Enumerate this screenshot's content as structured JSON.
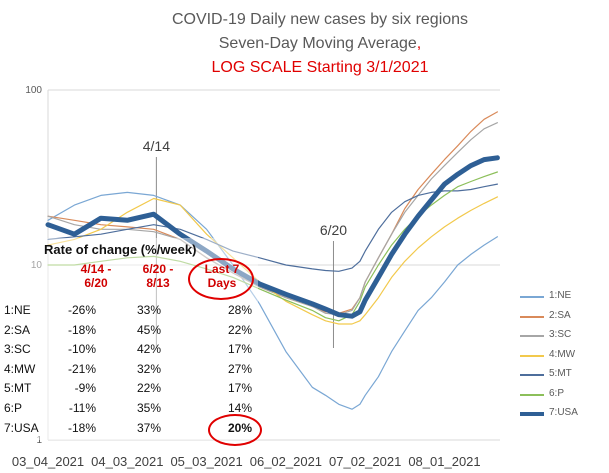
{
  "title": {
    "line1": "COVID-19 Daily new cases by six regions",
    "line2": "Seven-Day Moving Average",
    "line2_suffix": ",",
    "line3": "LOG SCALE Starting 3/1/2021"
  },
  "colors": {
    "NE": "#7aa7d4",
    "SA": "#d98a5a",
    "SC": "#a6a6a6",
    "MW": "#f2c94c",
    "MT": "#4e6e9c",
    "P": "#8cbf5a",
    "USA": "#2e5f95",
    "title_red": "#e00000",
    "annotation_ring": "#e00000"
  },
  "chart_data": {
    "type": "line",
    "scale": "log",
    "ylim": [
      1,
      100
    ],
    "y_ticks": [
      "100",
      "10",
      "1"
    ],
    "x_ticks": [
      "03_04_2021",
      "04_03_2021",
      "05_03_2021",
      "06_02_2021",
      "07_02_2021",
      "08_01_2021"
    ],
    "x_range_days": [
      0,
      171
    ],
    "x_tick_days": [
      0,
      30,
      60,
      90,
      120,
      150
    ],
    "annotations": [
      "4/14",
      "6/20"
    ],
    "annotation_days": [
      41,
      108
    ],
    "series": [
      {
        "name": "1:NE",
        "key": "NE",
        "days": [
          0,
          10,
          20,
          30,
          40,
          50,
          60,
          70,
          80,
          90,
          100,
          105,
          110,
          115,
          118,
          120,
          125,
          130,
          135,
          140,
          145,
          150,
          155,
          160,
          165,
          170
        ],
        "values": [
          18,
          22,
          25,
          26,
          25,
          22,
          16,
          10,
          6,
          3.2,
          2.0,
          1.8,
          1.6,
          1.5,
          1.6,
          1.8,
          2.3,
          3.2,
          4.2,
          5.5,
          6.5,
          8.0,
          10,
          11.5,
          13,
          14.5
        ]
      },
      {
        "name": "2:SA",
        "key": "SA",
        "days": [
          0,
          10,
          20,
          30,
          40,
          50,
          60,
          70,
          80,
          90,
          100,
          105,
          110,
          115,
          118,
          120,
          125,
          130,
          135,
          140,
          145,
          150,
          155,
          160,
          165,
          170
        ],
        "values": [
          19,
          18,
          17,
          16.5,
          16,
          14,
          11,
          9,
          7.5,
          6.5,
          5.8,
          5.4,
          5.3,
          5.6,
          6.5,
          8.0,
          11,
          15,
          21,
          27,
          33,
          40,
          48,
          58,
          68,
          75
        ]
      },
      {
        "name": "3:SC",
        "key": "SC",
        "days": [
          0,
          10,
          20,
          30,
          40,
          50,
          60,
          70,
          80,
          90,
          100,
          105,
          110,
          115,
          118,
          120,
          125,
          130,
          135,
          140,
          145,
          150,
          155,
          160,
          165,
          170
        ],
        "values": [
          19,
          17,
          16,
          16,
          15.5,
          14,
          11,
          9,
          7.5,
          6.5,
          5.8,
          5.3,
          5.2,
          5.5,
          6.5,
          8.0,
          11,
          15,
          20,
          25,
          31,
          37,
          44,
          52,
          60,
          65
        ]
      },
      {
        "name": "4:MW",
        "key": "MW",
        "days": [
          0,
          10,
          20,
          30,
          40,
          50,
          60,
          70,
          80,
          90,
          100,
          105,
          110,
          115,
          118,
          120,
          125,
          130,
          135,
          140,
          145,
          150,
          155,
          160,
          165,
          170
        ],
        "values": [
          13,
          14,
          16,
          20,
          24,
          22,
          15,
          11,
          8,
          6.2,
          5.2,
          4.8,
          4.6,
          4.6,
          4.8,
          5.2,
          6.5,
          8.5,
          10.5,
          12.5,
          14.5,
          16.5,
          18.5,
          20.5,
          22.5,
          24.5
        ]
      },
      {
        "name": "5:MT",
        "key": "MT",
        "days": [
          0,
          10,
          20,
          30,
          40,
          50,
          60,
          70,
          80,
          90,
          100,
          105,
          110,
          115,
          118,
          120,
          125,
          130,
          135,
          140,
          145,
          150,
          155,
          160,
          165,
          170
        ],
        "values": [
          14,
          14.5,
          15,
          16,
          17,
          16,
          14,
          12,
          11,
          10,
          9.5,
          9.3,
          9.2,
          9.6,
          10.5,
          12,
          16,
          20,
          23,
          25,
          26,
          26.5,
          26.5,
          27,
          28,
          29
        ]
      },
      {
        "name": "6:P",
        "key": "P",
        "days": [
          0,
          10,
          20,
          30,
          40,
          50,
          60,
          70,
          80,
          90,
          100,
          105,
          110,
          115,
          118,
          120,
          125,
          130,
          135,
          140,
          145,
          150,
          155,
          160,
          165,
          170
        ],
        "values": [
          10,
          10,
          10.5,
          11,
          11.2,
          10.5,
          9.5,
          8.5,
          7.3,
          6.3,
          5.5,
          5.0,
          4.8,
          5.2,
          6.2,
          7.5,
          10,
          13,
          16,
          19,
          22,
          25,
          28,
          30,
          32,
          34
        ]
      },
      {
        "name": "7:USA",
        "key": "USA",
        "days": [
          0,
          10,
          20,
          30,
          40,
          50,
          60,
          70,
          80,
          90,
          100,
          105,
          110,
          115,
          118,
          120,
          125,
          130,
          135,
          140,
          145,
          150,
          155,
          160,
          165,
          170
        ],
        "values": [
          17,
          15,
          18.5,
          18,
          19.5,
          15,
          12,
          9.5,
          7.8,
          6.8,
          6.0,
          5.6,
          5.2,
          5.1,
          5.4,
          6.3,
          8.5,
          11.5,
          15,
          19,
          23.5,
          29,
          33,
          37,
          40,
          41
        ]
      }
    ]
  },
  "rate_table": {
    "title": "Rate of change (%/week)",
    "columns": [
      {
        "line1": "4/14 -",
        "line2": "6/20"
      },
      {
        "line1": "6/20 -",
        "line2": "8/13"
      },
      {
        "line1": "Last 7",
        "line2": "Days"
      }
    ],
    "rows": [
      {
        "label": "1:NE",
        "c1": "-26%",
        "c2": "33%",
        "c3": "28%"
      },
      {
        "label": "2:SA",
        "c1": "-18%",
        "c2": "45%",
        "c3": "22%"
      },
      {
        "label": "3:SC",
        "c1": "-10%",
        "c2": "42%",
        "c3": "17%"
      },
      {
        "label": "4:MW",
        "c1": "-21%",
        "c2": "32%",
        "c3": "27%"
      },
      {
        "label": "5:MT",
        "c1": "-9%",
        "c2": "22%",
        "c3": "17%"
      },
      {
        "label": "6:P",
        "c1": "-11%",
        "c2": "35%",
        "c3": "14%"
      },
      {
        "label": "7:USA",
        "c1": "-18%",
        "c2": "37%",
        "c3": "20%"
      }
    ]
  }
}
